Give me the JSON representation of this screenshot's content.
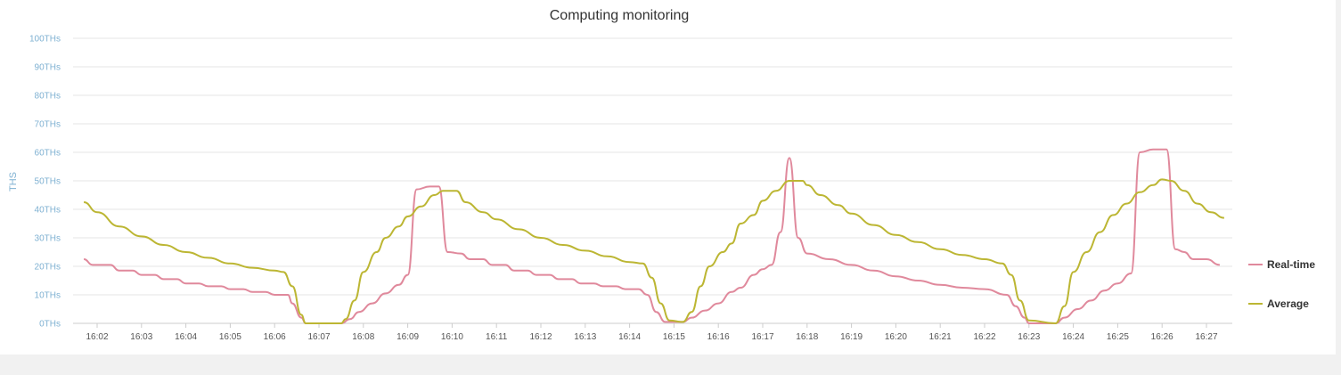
{
  "chart_data": {
    "type": "line",
    "title": "Computing monitoring",
    "xlabel": "",
    "ylabel": "THS",
    "ylim": [
      0,
      100
    ],
    "y_ticks": [
      "0THs",
      "10THs",
      "20THs",
      "30THs",
      "40THs",
      "50THs",
      "60THs",
      "70THs",
      "80THs",
      "90THs",
      "100THs"
    ],
    "x_ticks": [
      "16:02",
      "16:03",
      "16:04",
      "16:05",
      "16:06",
      "16:07",
      "16:08",
      "16:09",
      "16:10",
      "16:11",
      "16:12",
      "16:13",
      "16:14",
      "16:15",
      "16:16",
      "16:17",
      "16:18",
      "16:19",
      "16:20",
      "16:21",
      "16:22",
      "16:23",
      "16:24",
      "16:25",
      "16:26",
      "16:27"
    ],
    "grid": true,
    "legend_position": "right",
    "series": [
      {
        "name": "Real-time",
        "color": "#e0899c",
        "points": [
          [
            "16:01.7",
            22.5
          ],
          [
            "16:01.9",
            20.5
          ],
          [
            "16:02.3",
            20.5
          ],
          [
            "16:02.5",
            18.5
          ],
          [
            "16:02.8",
            18.5
          ],
          [
            "16:03.0",
            17
          ],
          [
            "16:03.3",
            17
          ],
          [
            "16:03.5",
            15.5
          ],
          [
            "16:03.8",
            15.5
          ],
          [
            "16:04.0",
            14
          ],
          [
            "16:04.3",
            14
          ],
          [
            "16:04.5",
            13
          ],
          [
            "16:04.8",
            13
          ],
          [
            "16:05.0",
            12
          ],
          [
            "16:05.3",
            12
          ],
          [
            "16:05.5",
            11
          ],
          [
            "16:05.8",
            11
          ],
          [
            "16:06.0",
            10
          ],
          [
            "16:06.3",
            10
          ],
          [
            "16:06.4",
            7
          ],
          [
            "16:06.6",
            2
          ],
          [
            "16:06.7",
            0
          ],
          [
            "16:07.5",
            0
          ],
          [
            "16:07.7",
            1.5
          ],
          [
            "16:07.9",
            4
          ],
          [
            "16:08.2",
            7
          ],
          [
            "16:08.5",
            10.5
          ],
          [
            "16:08.8",
            13.5
          ],
          [
            "16:09.0",
            17
          ],
          [
            "16:09.2",
            47
          ],
          [
            "16:09.5",
            48
          ],
          [
            "16:09.7",
            48
          ],
          [
            "16:09.9",
            25
          ],
          [
            "16:10.2",
            24.5
          ],
          [
            "16:10.4",
            22.5
          ],
          [
            "16:10.7",
            22.5
          ],
          [
            "16:10.9",
            20.5
          ],
          [
            "16:11.2",
            20.5
          ],
          [
            "16:11.4",
            18.5
          ],
          [
            "16:11.7",
            18.5
          ],
          [
            "16:11.9",
            17
          ],
          [
            "16:12.2",
            17
          ],
          [
            "16:12.4",
            15.5
          ],
          [
            "16:12.7",
            15.5
          ],
          [
            "16:12.9",
            14
          ],
          [
            "16:13.2",
            14
          ],
          [
            "16:13.4",
            13
          ],
          [
            "16:13.7",
            13
          ],
          [
            "16:13.9",
            12
          ],
          [
            "16:14.2",
            12
          ],
          [
            "16:14.4",
            10
          ],
          [
            "16:14.6",
            4
          ],
          [
            "16:14.8",
            0.5
          ],
          [
            "16:15.2",
            0.5
          ],
          [
            "16:15.4",
            2
          ],
          [
            "16:15.7",
            4.5
          ],
          [
            "16:16.0",
            7
          ],
          [
            "16:16.3",
            11
          ],
          [
            "16:16.5",
            12.5
          ],
          [
            "16:16.8",
            17
          ],
          [
            "16:17.0",
            19
          ],
          [
            "16:17.2",
            20.5
          ],
          [
            "16:17.4",
            32
          ],
          [
            "16:17.6",
            58
          ],
          [
            "16:17.8",
            30
          ],
          [
            "16:18.0",
            24.5
          ],
          [
            "16:18.5",
            22.5
          ],
          [
            "16:19.0",
            20.5
          ],
          [
            "16:19.5",
            18.5
          ],
          [
            "16:20.0",
            16.5
          ],
          [
            "16:20.5",
            15
          ],
          [
            "16:21.0",
            13.5
          ],
          [
            "16:21.5",
            12.5
          ],
          [
            "16:22.0",
            12
          ],
          [
            "16:22.5",
            10
          ],
          [
            "16:22.7",
            6
          ],
          [
            "16:22.9",
            2
          ],
          [
            "16:23.0",
            0
          ],
          [
            "16:23.6",
            0
          ],
          [
            "16:23.8",
            2
          ],
          [
            "16:24.1",
            5
          ],
          [
            "16:24.4",
            8
          ],
          [
            "16:24.7",
            11.5
          ],
          [
            "16:25.0",
            14
          ],
          [
            "16:25.3",
            17.5
          ],
          [
            "16:25.5",
            60
          ],
          [
            "16:25.8",
            61
          ],
          [
            "16:26.1",
            61
          ],
          [
            "16:26.3",
            26
          ],
          [
            "16:26.5",
            25
          ],
          [
            "16:26.7",
            22.5
          ],
          [
            "16:27.0",
            22.5
          ],
          [
            "16:27.3",
            20.5
          ]
        ]
      },
      {
        "name": "Average",
        "color": "#bcb633",
        "points": [
          [
            "16:01.7",
            42.5
          ],
          [
            "16:02.0",
            39
          ],
          [
            "16:02.5",
            34
          ],
          [
            "16:03.0",
            30.5
          ],
          [
            "16:03.5",
            27.5
          ],
          [
            "16:04.0",
            25
          ],
          [
            "16:04.5",
            23
          ],
          [
            "16:05.0",
            21
          ],
          [
            "16:05.5",
            19.5
          ],
          [
            "16:06.0",
            18.5
          ],
          [
            "16:06.2",
            18
          ],
          [
            "16:06.4",
            13
          ],
          [
            "16:06.6",
            3
          ],
          [
            "16:06.7",
            0
          ],
          [
            "16:07.5",
            0
          ],
          [
            "16:07.6",
            1.5
          ],
          [
            "16:07.8",
            8
          ],
          [
            "16:08.0",
            18
          ],
          [
            "16:08.3",
            25
          ],
          [
            "16:08.5",
            30
          ],
          [
            "16:08.8",
            34
          ],
          [
            "16:09.0",
            37.5
          ],
          [
            "16:09.3",
            41
          ],
          [
            "16:09.6",
            45
          ],
          [
            "16:09.8",
            46.5
          ],
          [
            "16:10.1",
            46.5
          ],
          [
            "16:10.3",
            42.5
          ],
          [
            "16:10.7",
            39
          ],
          [
            "16:11.0",
            36.5
          ],
          [
            "16:11.5",
            33
          ],
          [
            "16:12.0",
            30
          ],
          [
            "16:12.5",
            27.5
          ],
          [
            "16:13.0",
            25.5
          ],
          [
            "16:13.5",
            23.5
          ],
          [
            "16:14.0",
            21.5
          ],
          [
            "16:14.3",
            21
          ],
          [
            "16:14.5",
            16
          ],
          [
            "16:14.7",
            7
          ],
          [
            "16:14.9",
            1
          ],
          [
            "16:15.2",
            0.5
          ],
          [
            "16:15.4",
            4
          ],
          [
            "16:15.6",
            13
          ],
          [
            "16:15.8",
            20
          ],
          [
            "16:16.1",
            25
          ],
          [
            "16:16.3",
            28
          ],
          [
            "16:16.5",
            35
          ],
          [
            "16:16.8",
            38
          ],
          [
            "16:17.0",
            43
          ],
          [
            "16:17.3",
            46.5
          ],
          [
            "16:17.6",
            50
          ],
          [
            "16:17.9",
            50
          ],
          [
            "16:18.0",
            48.5
          ],
          [
            "16:18.3",
            45
          ],
          [
            "16:18.7",
            41.5
          ],
          [
            "16:19.0",
            38.5
          ],
          [
            "16:19.5",
            34.5
          ],
          [
            "16:20.0",
            31
          ],
          [
            "16:20.5",
            28.5
          ],
          [
            "16:21.0",
            26
          ],
          [
            "16:21.5",
            24
          ],
          [
            "16:22.0",
            22.5
          ],
          [
            "16:22.4",
            21
          ],
          [
            "16:22.6",
            17
          ],
          [
            "16:22.8",
            8
          ],
          [
            "16:23.0",
            1
          ],
          [
            "16:23.6",
            0
          ],
          [
            "16:23.8",
            6
          ],
          [
            "16:24.0",
            18
          ],
          [
            "16:24.3",
            25
          ],
          [
            "16:24.6",
            32
          ],
          [
            "16:24.9",
            38
          ],
          [
            "16:25.2",
            42
          ],
          [
            "16:25.5",
            46
          ],
          [
            "16:25.8",
            48.5
          ],
          [
            "16:26.0",
            50.5
          ],
          [
            "16:26.2",
            50
          ],
          [
            "16:26.5",
            46.5
          ],
          [
            "16:26.8",
            42
          ],
          [
            "16:27.1",
            39
          ],
          [
            "16:27.4",
            37
          ]
        ]
      }
    ]
  }
}
